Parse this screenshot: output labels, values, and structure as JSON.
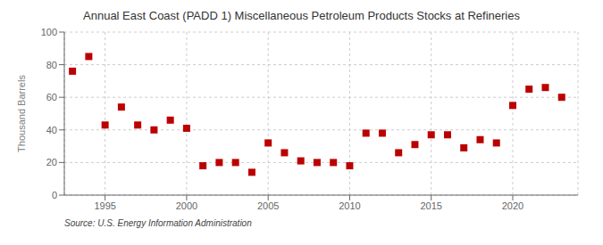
{
  "chart_data": {
    "type": "scatter",
    "title": "Annual East Coast (PADD 1) Miscellaneous Petroleum Products Stocks at Refineries",
    "y_label": "Thousand Barrels",
    "annotations": [
      "Source: U.S. Energy Information Administration"
    ],
    "x": [
      1993,
      1994,
      1995,
      1996,
      1997,
      1998,
      1999,
      2000,
      2001,
      2002,
      2003,
      2004,
      2005,
      2006,
      2007,
      2008,
      2009,
      2010,
      2011,
      2012,
      2013,
      2014,
      2015,
      2016,
      2017,
      2018,
      2019,
      2020,
      2021,
      2022,
      2023
    ],
    "values": [
      76,
      85,
      43,
      54,
      43,
      40,
      46,
      41,
      18,
      20,
      20,
      14,
      32,
      26,
      21,
      20,
      20,
      18,
      38,
      38,
      26,
      31,
      37,
      37,
      29,
      34,
      32,
      55,
      65,
      66,
      60
    ],
    "color": "#bb0000",
    "marker": "square",
    "xlim": [
      1992.5,
      2024
    ],
    "ylim": [
      0,
      100
    ],
    "xticks": [
      1995,
      2000,
      2005,
      2010,
      2015,
      2020
    ],
    "yticks": [
      0,
      20,
      40,
      60,
      80,
      100
    ],
    "grid": true
  }
}
